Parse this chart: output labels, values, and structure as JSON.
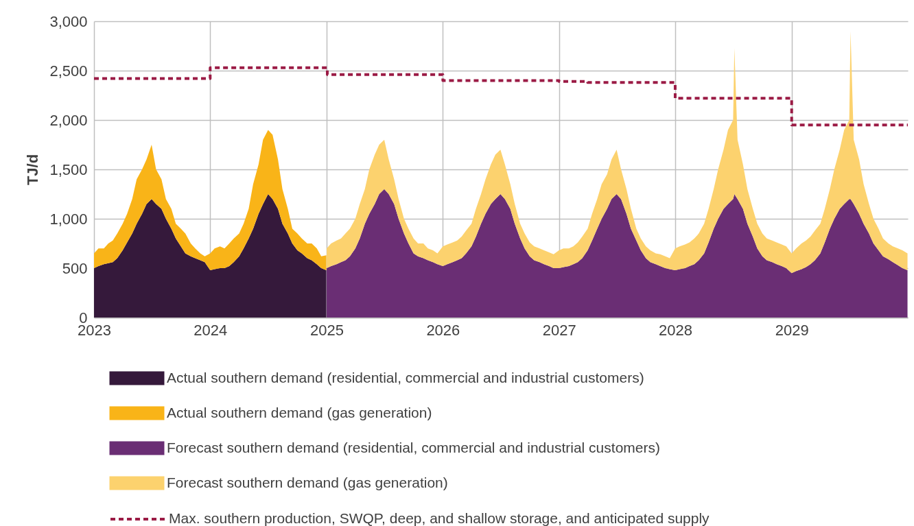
{
  "chart_data": {
    "type": "area",
    "stacked": true,
    "ylabel": "TJ/d",
    "ylim": [
      0,
      3000
    ],
    "yticks": [
      0,
      500,
      {
        "value": 1000,
        "label": "1,000"
      },
      {
        "value": 1500,
        "label": "1,500"
      },
      {
        "value": 2000,
        "label": "2,000"
      },
      {
        "value": 2500,
        "label": "2,500"
      },
      {
        "value": 3000,
        "label": "3,000"
      }
    ],
    "xlim": [
      "2023-01-01",
      "2030-01-01"
    ],
    "xticks": [
      "2023",
      "2024",
      "2025",
      "2026",
      "2027",
      "2028",
      "2029"
    ],
    "grid": true,
    "legend": "bottom",
    "x": [
      "2023-01-01",
      "2023-01-15",
      "2023-02-01",
      "2023-02-15",
      "2023-03-01",
      "2023-03-15",
      "2023-04-01",
      "2023-04-15",
      "2023-05-01",
      "2023-05-15",
      "2023-06-01",
      "2023-06-15",
      "2023-07-01",
      "2023-07-15",
      "2023-08-01",
      "2023-08-15",
      "2023-09-01",
      "2023-09-15",
      "2023-10-01",
      "2023-10-15",
      "2023-11-01",
      "2023-11-15",
      "2023-12-01",
      "2023-12-15",
      "2024-01-01",
      "2024-01-15",
      "2024-02-01",
      "2024-02-15",
      "2024-03-01",
      "2024-03-15",
      "2024-04-01",
      "2024-04-15",
      "2024-05-01",
      "2024-05-15",
      "2024-06-01",
      "2024-06-15",
      "2024-07-01",
      "2024-07-15",
      "2024-08-01",
      "2024-08-15",
      "2024-09-01",
      "2024-09-15",
      "2024-10-01",
      "2024-10-15",
      "2024-11-01",
      "2024-11-15",
      "2024-12-01",
      "2024-12-15",
      "2024-12-31",
      "2025-01-01",
      "2025-01-15",
      "2025-02-01",
      "2025-02-15",
      "2025-03-01",
      "2025-03-15",
      "2025-04-01",
      "2025-04-15",
      "2025-05-01",
      "2025-05-15",
      "2025-06-01",
      "2025-06-15",
      "2025-07-01",
      "2025-07-15",
      "2025-08-01",
      "2025-08-15",
      "2025-09-01",
      "2025-09-15",
      "2025-10-01",
      "2025-10-15",
      "2025-11-01",
      "2025-11-15",
      "2025-12-01",
      "2025-12-15",
      "2026-01-01",
      "2026-01-15",
      "2026-02-01",
      "2026-02-15",
      "2026-03-01",
      "2026-03-15",
      "2026-04-01",
      "2026-04-15",
      "2026-05-01",
      "2026-05-15",
      "2026-06-01",
      "2026-06-15",
      "2026-07-01",
      "2026-07-15",
      "2026-08-01",
      "2026-08-15",
      "2026-09-01",
      "2026-09-15",
      "2026-10-01",
      "2026-10-15",
      "2026-11-01",
      "2026-11-15",
      "2026-12-01",
      "2026-12-15",
      "2027-01-01",
      "2027-01-15",
      "2027-02-01",
      "2027-02-15",
      "2027-03-01",
      "2027-03-15",
      "2027-04-01",
      "2027-04-15",
      "2027-05-01",
      "2027-05-15",
      "2027-06-01",
      "2027-06-15",
      "2027-07-01",
      "2027-07-15",
      "2027-08-01",
      "2027-08-15",
      "2027-09-01",
      "2027-09-15",
      "2027-10-01",
      "2027-10-15",
      "2027-11-01",
      "2027-11-15",
      "2027-12-01",
      "2027-12-15",
      "2028-01-01",
      "2028-01-15",
      "2028-02-01",
      "2028-02-15",
      "2028-03-01",
      "2028-03-15",
      "2028-04-01",
      "2028-04-15",
      "2028-05-01",
      "2028-05-15",
      "2028-06-01",
      "2028-06-15",
      "2028-07-01",
      "2028-07-05",
      "2028-07-15",
      "2028-08-01",
      "2028-08-15",
      "2028-09-01",
      "2028-09-15",
      "2028-10-01",
      "2028-10-15",
      "2028-11-01",
      "2028-11-15",
      "2028-12-01",
      "2028-12-15",
      "2029-01-01",
      "2029-01-15",
      "2029-02-01",
      "2029-02-15",
      "2029-03-01",
      "2029-03-15",
      "2029-04-01",
      "2029-04-15",
      "2029-05-01",
      "2029-05-15",
      "2029-06-01",
      "2029-06-15",
      "2029-07-01",
      "2029-07-05",
      "2029-07-15",
      "2029-08-01",
      "2029-08-15",
      "2029-09-01",
      "2029-09-15",
      "2029-10-01",
      "2029-10-15",
      "2029-11-01",
      "2029-11-15",
      "2029-12-01",
      "2029-12-15",
      "2029-12-31"
    ],
    "series": [
      {
        "name": "Actual southern demand (residential, commercial and industrial customers)",
        "color": "#35193b",
        "values": [
          500,
          520,
          540,
          550,
          560,
          600,
          680,
          760,
          850,
          950,
          1050,
          1150,
          1200,
          1150,
          1100,
          1000,
          900,
          800,
          720,
          650,
          620,
          600,
          580,
          560,
          480,
          490,
          500,
          500,
          520,
          560,
          620,
          700,
          800,
          900,
          1050,
          1150,
          1250,
          1200,
          1100,
          950,
          850,
          750,
          680,
          650,
          600,
          580,
          540,
          500,
          480,
          null,
          null,
          null,
          null,
          null,
          null,
          null,
          null,
          null,
          null,
          null,
          null,
          null,
          null,
          null,
          null,
          null,
          null,
          null,
          null,
          null,
          null,
          null,
          null,
          null,
          null,
          null,
          null,
          null,
          null,
          null,
          null,
          null,
          null,
          null,
          null,
          null,
          null,
          null,
          null,
          null,
          null,
          null,
          null,
          null,
          null,
          null,
          null,
          null,
          null,
          null,
          null,
          null,
          null,
          null,
          null,
          null,
          null,
          null,
          null,
          null,
          null,
          null,
          null,
          null,
          null,
          null,
          null,
          null,
          null,
          null,
          null,
          null,
          null,
          null,
          null,
          null,
          null,
          null,
          null,
          null,
          null,
          null,
          null,
          null,
          null,
          null,
          null,
          null,
          null,
          null,
          null,
          null,
          null,
          null,
          null,
          null,
          null,
          null,
          null,
          null,
          null,
          null,
          null,
          null,
          null,
          null,
          null,
          null,
          null,
          null,
          null,
          null,
          null,
          null,
          null,
          null,
          null,
          null,
          null,
          null,
          null,
          null
        ]
      },
      {
        "name": "Actual southern demand (gas generation)",
        "color": "#f9b418",
        "values": [
          150,
          180,
          160,
          200,
          220,
          250,
          270,
          290,
          350,
          450,
          450,
          450,
          550,
          350,
          300,
          200,
          200,
          150,
          180,
          200,
          130,
          100,
          70,
          60,
          170,
          210,
          220,
          200,
          230,
          240,
          230,
          250,
          300,
          450,
          500,
          650,
          650,
          650,
          500,
          350,
          250,
          150,
          170,
          150,
          150,
          170,
          160,
          120,
          150,
          null,
          null,
          null,
          null,
          null,
          null,
          null,
          null,
          null,
          null,
          null,
          null,
          null,
          null,
          null,
          null,
          null,
          null,
          null,
          null,
          null,
          null,
          null,
          null,
          null,
          null,
          null,
          null,
          null,
          null,
          null,
          null,
          null,
          null,
          null,
          null,
          null,
          null,
          null,
          null,
          null,
          null,
          null,
          null,
          null,
          null,
          null,
          null,
          null,
          null,
          null,
          null,
          null,
          null,
          null,
          null,
          null,
          null,
          null,
          null,
          null,
          null,
          null,
          null,
          null,
          null,
          null,
          null,
          null,
          null,
          null,
          null,
          null,
          null,
          null,
          null,
          null,
          null,
          null,
          null,
          null,
          null,
          null,
          null,
          null,
          null,
          null,
          null,
          null,
          null,
          null,
          null,
          null,
          null,
          null,
          null,
          null,
          null,
          null,
          null,
          null,
          null,
          null,
          null,
          null,
          null,
          null,
          null,
          null,
          null,
          null,
          null,
          null,
          null,
          null,
          null,
          null,
          null,
          null,
          null,
          null,
          null,
          null
        ]
      },
      {
        "name": "Forecast southern demand (residential, commercial and industrial customers)",
        "color": "#6a2e74",
        "values": [
          null,
          null,
          null,
          null,
          null,
          null,
          null,
          null,
          null,
          null,
          null,
          null,
          null,
          null,
          null,
          null,
          null,
          null,
          null,
          null,
          null,
          null,
          null,
          null,
          null,
          null,
          null,
          null,
          null,
          null,
          null,
          null,
          null,
          null,
          null,
          null,
          null,
          null,
          null,
          null,
          null,
          null,
          null,
          null,
          null,
          null,
          null,
          null,
          null,
          500,
          520,
          540,
          560,
          580,
          620,
          700,
          800,
          950,
          1050,
          1150,
          1250,
          1300,
          1250,
          1150,
          1000,
          850,
          750,
          650,
          620,
          600,
          580,
          560,
          540,
          520,
          540,
          560,
          580,
          600,
          650,
          720,
          820,
          950,
          1050,
          1150,
          1200,
          1250,
          1200,
          1100,
          950,
          800,
          700,
          620,
          580,
          560,
          540,
          520,
          500,
          500,
          510,
          520,
          540,
          560,
          600,
          680,
          780,
          900,
          1000,
          1100,
          1200,
          1250,
          1200,
          1050,
          900,
          780,
          680,
          600,
          560,
          540,
          520,
          500,
          490,
          480,
          490,
          500,
          520,
          540,
          580,
          650,
          760,
          900,
          1000,
          1100,
          1150,
          1200,
          1250,
          1200,
          1100,
          950,
          820,
          700,
          620,
          580,
          560,
          540,
          520,
          500,
          450,
          470,
          490,
          510,
          540,
          580,
          650,
          760,
          900,
          1000,
          1100,
          1150,
          1200,
          1200,
          1150,
          1050,
          950,
          850,
          750,
          680,
          620,
          590,
          560,
          530,
          500,
          480
        ]
      },
      {
        "name": "Forecast southern demand (gas generation)",
        "color": "#fcd26e",
        "values": [
          null,
          null,
          null,
          null,
          null,
          null,
          null,
          null,
          null,
          null,
          null,
          null,
          null,
          null,
          null,
          null,
          null,
          null,
          null,
          null,
          null,
          null,
          null,
          null,
          null,
          null,
          null,
          null,
          null,
          null,
          null,
          null,
          null,
          null,
          null,
          null,
          null,
          null,
          null,
          null,
          null,
          null,
          null,
          null,
          null,
          null,
          null,
          null,
          null,
          200,
          230,
          240,
          240,
          270,
          280,
          300,
          350,
          350,
          450,
          500,
          500,
          500,
          350,
          250,
          200,
          150,
          150,
          150,
          130,
          150,
          120,
          120,
          110,
          200,
          200,
          200,
          200,
          220,
          230,
          230,
          280,
          300,
          350,
          400,
          450,
          450,
          350,
          250,
          200,
          150,
          150,
          140,
          140,
          140,
          140,
          140,
          140,
          180,
          190,
          180,
          180,
          200,
          220,
          220,
          270,
          300,
          350,
          350,
          400,
          450,
          300,
          250,
          200,
          120,
          120,
          120,
          120,
          110,
          120,
          120,
          110,
          220,
          230,
          240,
          240,
          260,
          270,
          300,
          340,
          400,
          500,
          600,
          750,
          800,
          1480,
          600,
          450,
          350,
          280,
          250,
          230,
          220,
          220,
          220,
          220,
          220,
          200,
          230,
          260,
          270,
          280,
          300,
          300,
          340,
          400,
          500,
          600,
          750,
          800,
          1700,
          650,
          550,
          400,
          300,
          250,
          220,
          180,
          160,
          160,
          170,
          180,
          170
        ]
      },
      {
        "name": "Max. southern production, SWQP, deep, and shallow storage, and anticipated supply",
        "type": "step",
        "color": "#9b1b45",
        "line_style": "dashed",
        "x": [
          "2023-01-01",
          "2024-01-01",
          "2025-01-03",
          "2026-01-01",
          "2027-01-01",
          "2027-04-01",
          "2028-01-01",
          "2029-01-01",
          "2030-01-01"
        ],
        "values": [
          2420,
          2530,
          2460,
          2400,
          2390,
          2380,
          2220,
          1950,
          1950
        ]
      }
    ]
  }
}
